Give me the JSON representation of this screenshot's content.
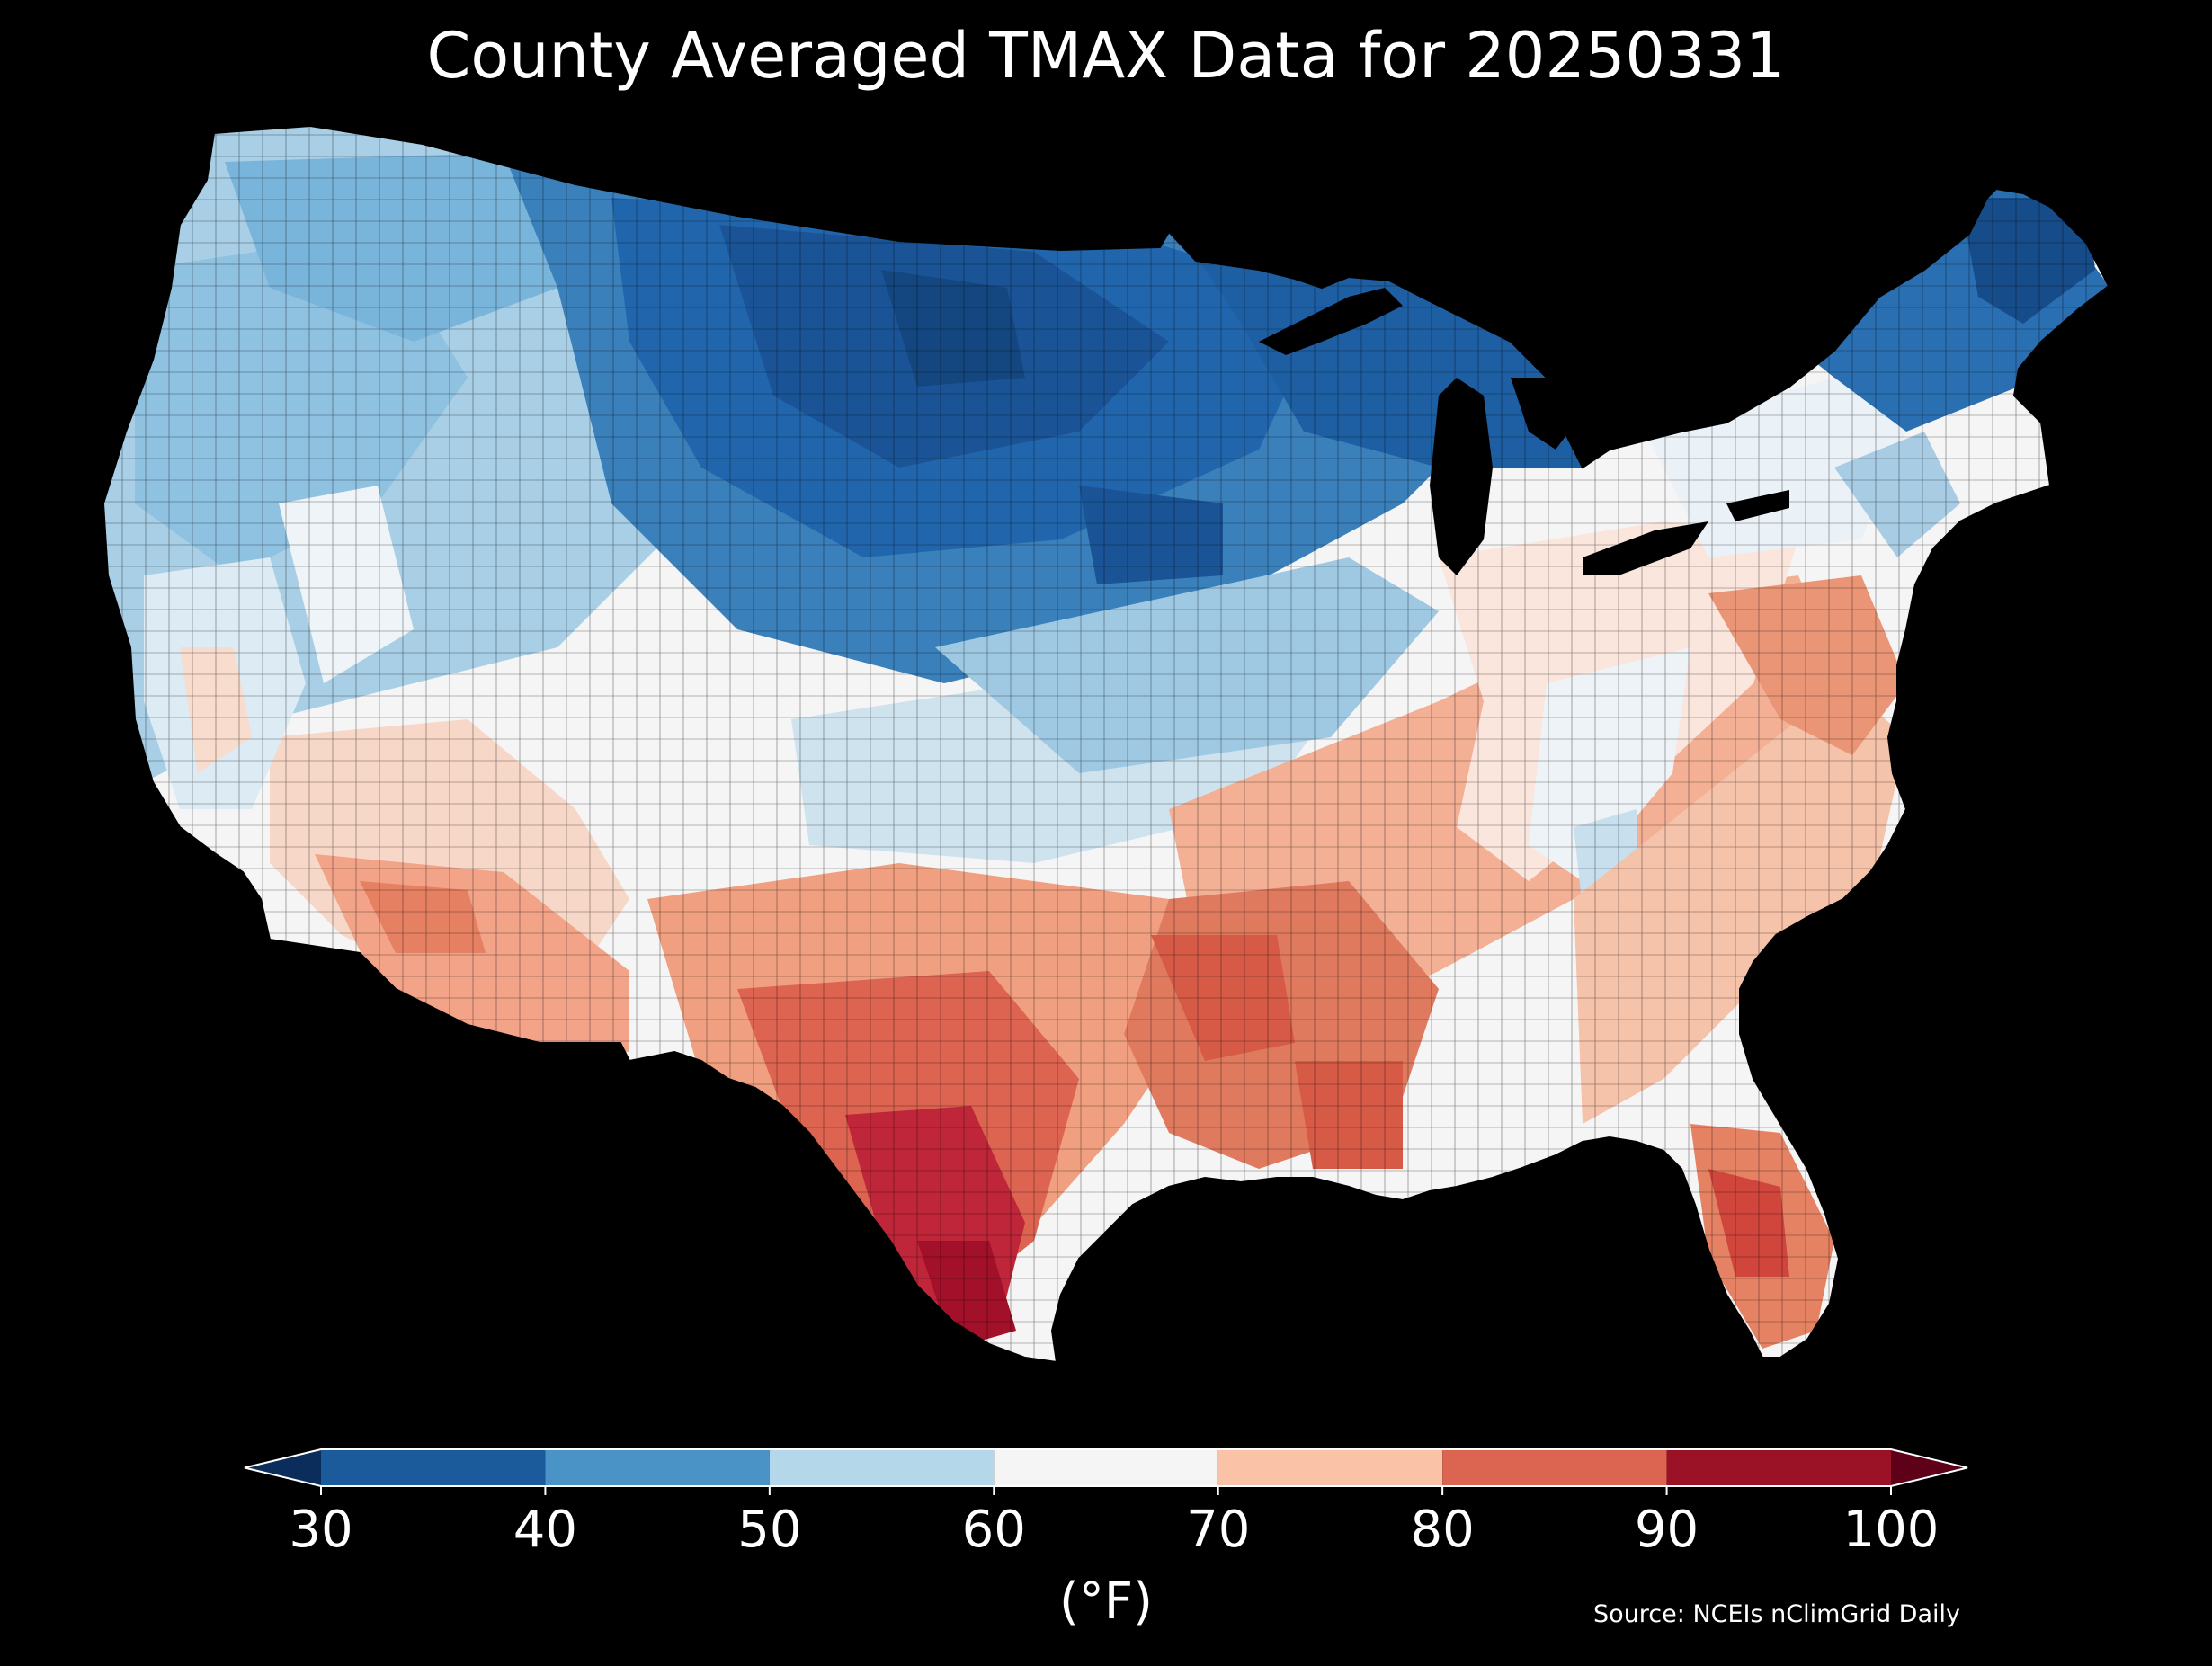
{
  "title": "County Averaged TMAX Data for 20250331",
  "colorbar": {
    "ticks": [
      "30",
      "40",
      "50",
      "60",
      "70",
      "80",
      "90",
      "100"
    ],
    "unit": "(°F)",
    "bins": [
      {
        "min": 30,
        "max": 40,
        "color": "#1b5a9b"
      },
      {
        "min": 40,
        "max": 50,
        "color": "#4993c6"
      },
      {
        "min": 50,
        "max": 60,
        "color": "#b4d7ea"
      },
      {
        "min": 60,
        "max": 70,
        "color": "#f5f5f5"
      },
      {
        "min": 70,
        "max": 80,
        "color": "#fac3a8"
      },
      {
        "min": 80,
        "max": 90,
        "color": "#db6550"
      },
      {
        "min": 90,
        "max": 100,
        "color": "#9b1126"
      }
    ],
    "under_color": "#0a2d5c",
    "over_color": "#5e0018"
  },
  "source": "Source: NCEIs nClimGrid Daily",
  "map": {
    "region": "contiguous-united-states",
    "colormap": "RdBu_r",
    "background_color": "#000000",
    "county_border_color": "#000000"
  }
}
